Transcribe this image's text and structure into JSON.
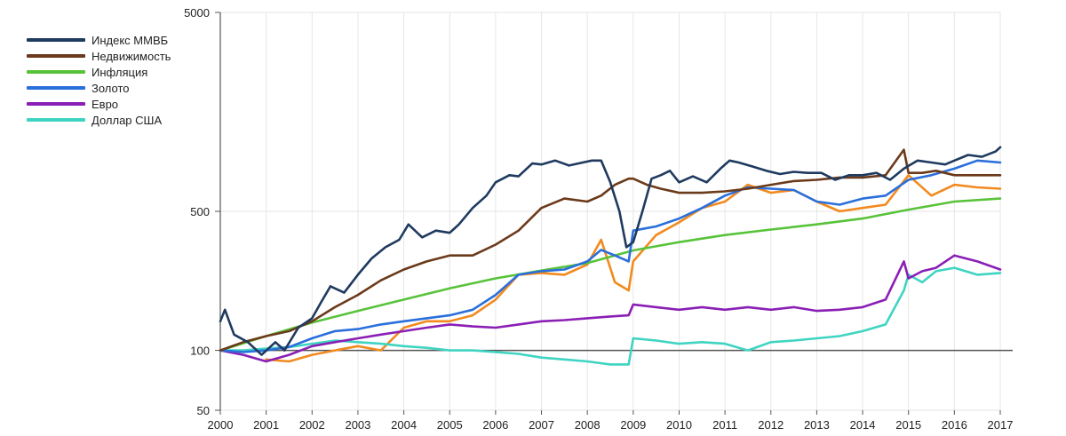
{
  "chart_data": {
    "type": "line",
    "y_scale": "log",
    "ylim": [
      50,
      5000
    ],
    "xlim": [
      2000,
      2017
    ],
    "grid": true,
    "legend_position": "top-left",
    "baseline": 100,
    "y_ticks": [
      {
        "value": 5000,
        "label": "5000"
      },
      {
        "value": 500,
        "label": "500"
      },
      {
        "value": 100,
        "label": "100"
      },
      {
        "value": 50,
        "label": "50"
      }
    ],
    "x_ticks": [
      "2000",
      "2001",
      "2002",
      "2003",
      "2004",
      "2005",
      "2006",
      "2007",
      "2008",
      "2009",
      "2010",
      "2011",
      "2012",
      "2013",
      "2014",
      "2015",
      "2016",
      "2017"
    ],
    "series": [
      {
        "name": "Индекс ММВБ",
        "color": "#1f3a5f",
        "x": [
          2000,
          2000.1,
          2000.3,
          2000.6,
          2000.9,
          2001.2,
          2001.4,
          2001.7,
          2002,
          2002.2,
          2002.4,
          2002.7,
          2003,
          2003.3,
          2003.6,
          2003.9,
          2004.1,
          2004.4,
          2004.7,
          2005,
          2005.2,
          2005.5,
          2005.8,
          2006,
          2006.3,
          2006.5,
          2006.8,
          2007,
          2007.3,
          2007.6,
          2007.9,
          2008.1,
          2008.3,
          2008.5,
          2008.7,
          2008.85,
          2009,
          2009.2,
          2009.4,
          2009.6,
          2009.8,
          2010,
          2010.3,
          2010.6,
          2010.9,
          2011.1,
          2011.3,
          2011.6,
          2011.9,
          2012.2,
          2012.5,
          2012.8,
          2013.1,
          2013.4,
          2013.7,
          2014,
          2014.3,
          2014.6,
          2014.9,
          2015.2,
          2015.5,
          2015.8,
          2016,
          2016.3,
          2016.6,
          2016.9,
          2017
        ],
        "values": [
          140,
          160,
          120,
          110,
          95,
          110,
          100,
          130,
          145,
          175,
          210,
          195,
          240,
          290,
          330,
          360,
          430,
          370,
          400,
          390,
          430,
          520,
          600,
          700,
          760,
          750,
          870,
          860,
          900,
          850,
          880,
          900,
          900,
          700,
          500,
          330,
          350,
          500,
          730,
          760,
          800,
          700,
          750,
          700,
          820,
          900,
          880,
          840,
          800,
          770,
          790,
          780,
          780,
          720,
          760,
          760,
          780,
          720,
          820,
          900,
          880,
          860,
          900,
          960,
          940,
          1000,
          1050
        ]
      },
      {
        "name": "Недвижимость",
        "color": "#6b3a1a",
        "x": [
          2000,
          2000.5,
          2001,
          2001.5,
          2002,
          2002.5,
          2003,
          2003.5,
          2004,
          2004.5,
          2005,
          2005.5,
          2006,
          2006.5,
          2007,
          2007.5,
          2008,
          2008.3,
          2008.6,
          2008.9,
          2009,
          2009.3,
          2009.6,
          2010,
          2010.5,
          2011,
          2011.5,
          2012,
          2012.5,
          2013,
          2013.5,
          2014,
          2014.5,
          2014.9,
          2015,
          2015.3,
          2015.6,
          2016,
          2016.5,
          2017
        ],
        "values": [
          100,
          110,
          118,
          125,
          140,
          165,
          190,
          225,
          255,
          280,
          300,
          300,
          340,
          400,
          520,
          580,
          560,
          600,
          680,
          730,
          730,
          680,
          650,
          620,
          620,
          630,
          650,
          680,
          710,
          720,
          740,
          740,
          760,
          1020,
          780,
          780,
          800,
          760,
          760,
          760
        ]
      },
      {
        "name": "Инфляция",
        "color": "#58c33a",
        "x": [
          2000,
          2001,
          2002,
          2003,
          2004,
          2005,
          2006,
          2007,
          2008,
          2009,
          2010,
          2011,
          2012,
          2013,
          2014,
          2015,
          2016,
          2017
        ],
        "values": [
          100,
          118,
          138,
          158,
          180,
          205,
          230,
          252,
          275,
          318,
          350,
          380,
          405,
          430,
          460,
          510,
          560,
          580
        ]
      },
      {
        "name": "Золото",
        "color": "#2a6fdb",
        "x": [
          2000,
          2000.5,
          2001,
          2001.5,
          2002,
          2002.5,
          2003,
          2003.5,
          2004,
          2004.5,
          2005,
          2005.5,
          2006,
          2006.5,
          2007,
          2007.5,
          2008,
          2008.3,
          2008.6,
          2008.9,
          2009,
          2009.5,
          2010,
          2010.5,
          2011,
          2011.5,
          2012,
          2012.5,
          2013,
          2013.5,
          2014,
          2014.5,
          2015,
          2015.5,
          2016,
          2016.5,
          2017
        ],
        "values": [
          100,
          98,
          100,
          104,
          115,
          125,
          128,
          135,
          140,
          145,
          150,
          160,
          190,
          240,
          250,
          255,
          280,
          320,
          300,
          280,
          400,
          420,
          460,
          520,
          600,
          660,
          650,
          640,
          560,
          540,
          580,
          600,
          720,
          760,
          820,
          900,
          880
        ]
      },
      {
        "name": "Евро",
        "color": "#8a1fb5",
        "x": [
          2000,
          2000.5,
          2001,
          2001.5,
          2002,
          2002.5,
          2003,
          2003.5,
          2004,
          2004.5,
          2005,
          2005.5,
          2006,
          2006.5,
          2007,
          2007.5,
          2008,
          2008.5,
          2008.9,
          2009,
          2009.5,
          2010,
          2010.5,
          2011,
          2011.5,
          2012,
          2012.5,
          2013,
          2013.5,
          2014,
          2014.5,
          2014.9,
          2015,
          2015.3,
          2015.6,
          2016,
          2016.5,
          2017
        ],
        "values": [
          100,
          95,
          88,
          95,
          105,
          110,
          115,
          120,
          125,
          130,
          135,
          132,
          130,
          135,
          140,
          142,
          145,
          148,
          150,
          170,
          165,
          160,
          165,
          160,
          165,
          160,
          165,
          158,
          160,
          165,
          180,
          280,
          230,
          250,
          260,
          300,
          280,
          255
        ]
      },
      {
        "name": "Доллар США",
        "color": "#3fd4c2",
        "x": [
          2000,
          2000.5,
          2001,
          2001.5,
          2002,
          2002.5,
          2003,
          2003.5,
          2004,
          2004.5,
          2005,
          2005.5,
          2006,
          2006.5,
          2007,
          2007.5,
          2008,
          2008.5,
          2008.9,
          2009,
          2009.5,
          2010,
          2010.5,
          2011,
          2011.5,
          2012,
          2012.5,
          2013,
          2013.5,
          2014,
          2014.5,
          2014.9,
          2015,
          2015.3,
          2015.6,
          2016,
          2016.5,
          2017
        ],
        "values": [
          100,
          100,
          102,
          104,
          108,
          112,
          110,
          108,
          105,
          103,
          100,
          100,
          98,
          96,
          92,
          90,
          88,
          85,
          85,
          115,
          112,
          108,
          110,
          108,
          100,
          110,
          112,
          115,
          118,
          125,
          135,
          200,
          240,
          220,
          250,
          260,
          240,
          245
        ]
      },
      {
        "color": "#f28a1e",
        "x": [
          2001,
          2001.5,
          2002,
          2002.5,
          2003,
          2003.5,
          2004,
          2004.5,
          2005,
          2005.5,
          2006,
          2006.5,
          2007,
          2007.5,
          2008,
          2008.3,
          2008.6,
          2008.9,
          2009,
          2009.5,
          2010,
          2010.5,
          2011,
          2011.5,
          2012,
          2012.5,
          2013,
          2013.5,
          2014,
          2014.5,
          2015,
          2015.5,
          2016,
          2016.5,
          2017
        ],
        "values": [
          90,
          88,
          95,
          100,
          105,
          100,
          130,
          140,
          140,
          150,
          180,
          240,
          245,
          240,
          270,
          360,
          220,
          200,
          280,
          380,
          440,
          520,
          560,
          680,
          620,
          640,
          560,
          500,
          520,
          540,
          760,
          600,
          680,
          660,
          650
        ]
      }
    ]
  }
}
